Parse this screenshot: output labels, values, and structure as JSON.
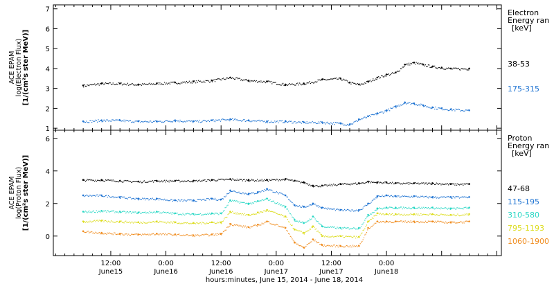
{
  "chart_data": [
    {
      "type": "scatter",
      "panel": "electron",
      "ylabel_lines": [
        "ACE EPAM",
        "log(Electron Flux)",
        "[1/(cm²s ster MeV)]"
      ],
      "ylim": [
        0.9,
        7.2
      ],
      "yticks": [
        1,
        2,
        3,
        4,
        5,
        6,
        7
      ],
      "legend_title_lines": [
        "Electron",
        "Energy ran",
        "[keV]"
      ],
      "series": [
        {
          "name": "38-53",
          "color": "#000000",
          "x": [
            0,
            4,
            8,
            12,
            16,
            20,
            24,
            28,
            32,
            36,
            40,
            44,
            48,
            52,
            56,
            58,
            60,
            62,
            64,
            66,
            68,
            70,
            72,
            74,
            76,
            78,
            80,
            84
          ],
          "y": [
            3.15,
            3.25,
            3.25,
            3.2,
            3.25,
            3.3,
            3.35,
            3.4,
            3.55,
            3.4,
            3.35,
            3.2,
            3.25,
            3.45,
            3.5,
            3.3,
            3.2,
            3.35,
            3.55,
            3.7,
            3.8,
            4.2,
            4.3,
            4.2,
            4.1,
            4.05,
            4.0,
            4.0
          ]
        },
        {
          "name": "175-315",
          "color": "#1e73d2",
          "x": [
            0,
            4,
            8,
            12,
            16,
            20,
            24,
            28,
            32,
            36,
            40,
            44,
            48,
            52,
            56,
            58,
            60,
            62,
            64,
            66,
            68,
            70,
            72,
            74,
            76,
            78,
            80,
            84
          ],
          "y": [
            1.35,
            1.4,
            1.4,
            1.35,
            1.35,
            1.4,
            1.35,
            1.4,
            1.45,
            1.4,
            1.35,
            1.35,
            1.3,
            1.3,
            1.25,
            1.2,
            1.45,
            1.6,
            1.75,
            1.9,
            2.1,
            2.3,
            2.25,
            2.15,
            2.05,
            2.0,
            1.95,
            1.9
          ]
        }
      ]
    },
    {
      "type": "scatter",
      "panel": "proton",
      "ylabel_lines": [
        "ACE EPAM",
        "log(Proton Flux)",
        "[1/(cm²s ster MeV)]"
      ],
      "ylim": [
        -1.2,
        6.5
      ],
      "yticks": [
        0,
        2,
        4,
        6
      ],
      "legend_title_lines": [
        "Proton",
        "Energy ran",
        "[keV]"
      ],
      "series": [
        {
          "name": "47-68",
          "color": "#000000",
          "x": [
            0,
            4,
            8,
            12,
            16,
            20,
            24,
            28,
            32,
            36,
            40,
            44,
            46,
            48,
            50,
            52,
            56,
            60,
            62,
            64,
            66,
            68,
            72,
            76,
            80,
            84
          ],
          "y": [
            3.45,
            3.45,
            3.4,
            3.35,
            3.4,
            3.4,
            3.4,
            3.45,
            3.5,
            3.45,
            3.45,
            3.5,
            3.4,
            3.3,
            3.1,
            3.1,
            3.2,
            3.25,
            3.35,
            3.3,
            3.3,
            3.25,
            3.25,
            3.25,
            3.2,
            3.2
          ]
        },
        {
          "name": "115-195",
          "color": "#1e73d2",
          "x": [
            0,
            4,
            8,
            12,
            16,
            20,
            24,
            28,
            30,
            32,
            36,
            38,
            40,
            44,
            46,
            48,
            50,
            52,
            56,
            60,
            62,
            64,
            66,
            68,
            72,
            76,
            80,
            84
          ],
          "y": [
            2.5,
            2.5,
            2.4,
            2.3,
            2.3,
            2.2,
            2.2,
            2.3,
            2.25,
            2.8,
            2.6,
            2.7,
            2.9,
            2.5,
            1.9,
            1.8,
            2.0,
            1.75,
            1.6,
            1.6,
            2.0,
            2.45,
            2.5,
            2.45,
            2.45,
            2.4,
            2.4,
            2.4
          ]
        },
        {
          "name": "310-580",
          "color": "#27d7c4",
          "x": [
            0,
            4,
            8,
            12,
            16,
            20,
            24,
            28,
            30,
            32,
            36,
            38,
            40,
            44,
            46,
            48,
            50,
            52,
            56,
            60,
            62,
            64,
            66,
            68,
            72,
            76,
            80,
            84
          ],
          "y": [
            1.5,
            1.55,
            1.5,
            1.45,
            1.5,
            1.4,
            1.35,
            1.4,
            1.4,
            2.2,
            2.0,
            2.15,
            2.3,
            1.8,
            1.0,
            0.8,
            1.2,
            0.6,
            0.5,
            0.5,
            1.3,
            1.7,
            1.75,
            1.75,
            1.75,
            1.75,
            1.7,
            1.75
          ]
        },
        {
          "name": "795-1193",
          "color": "#dcdc1e",
          "x": [
            0,
            4,
            8,
            12,
            16,
            20,
            24,
            28,
            30,
            32,
            36,
            38,
            40,
            44,
            46,
            48,
            50,
            52,
            56,
            60,
            62,
            64,
            66,
            68,
            72,
            76,
            80,
            84
          ],
          "y": [
            0.9,
            0.95,
            0.9,
            0.85,
            0.9,
            0.85,
            0.8,
            0.85,
            0.85,
            1.5,
            1.3,
            1.45,
            1.6,
            1.2,
            0.4,
            0.2,
            0.6,
            0.0,
            0.0,
            -0.05,
            0.9,
            1.4,
            1.35,
            1.35,
            1.35,
            1.35,
            1.3,
            1.35
          ]
        },
        {
          "name": "1060-1900",
          "color": "#f08c1e",
          "x": [
            0,
            4,
            8,
            12,
            16,
            20,
            24,
            28,
            30,
            32,
            36,
            38,
            40,
            44,
            46,
            48,
            50,
            52,
            56,
            60,
            62,
            64,
            66,
            68,
            72,
            76,
            80,
            84
          ],
          "y": [
            0.3,
            0.2,
            0.15,
            0.1,
            0.15,
            0.1,
            0.05,
            0.1,
            0.15,
            0.75,
            0.55,
            0.7,
            0.9,
            0.5,
            -0.4,
            -0.7,
            -0.2,
            -0.55,
            -0.6,
            -0.6,
            0.5,
            0.9,
            0.9,
            0.9,
            0.9,
            0.9,
            0.85,
            0.9
          ]
        }
      ]
    }
  ],
  "x_axis": {
    "xlim": [
      -6.5,
      91
    ],
    "ticks": [
      {
        "x": 6,
        "time": "12:00",
        "date": "June15"
      },
      {
        "x": 18,
        "time": "0:00",
        "date": "June16"
      },
      {
        "x": 30,
        "time": "12:00",
        "date": "June16"
      },
      {
        "x": 42,
        "time": "0:00",
        "date": "June17"
      },
      {
        "x": 54,
        "time": "12:00",
        "date": "June17"
      },
      {
        "x": 66,
        "time": "0:00",
        "date": "June18"
      }
    ],
    "xlabel": "hours:minutes, June 15, 2014 - June 18, 2014"
  }
}
